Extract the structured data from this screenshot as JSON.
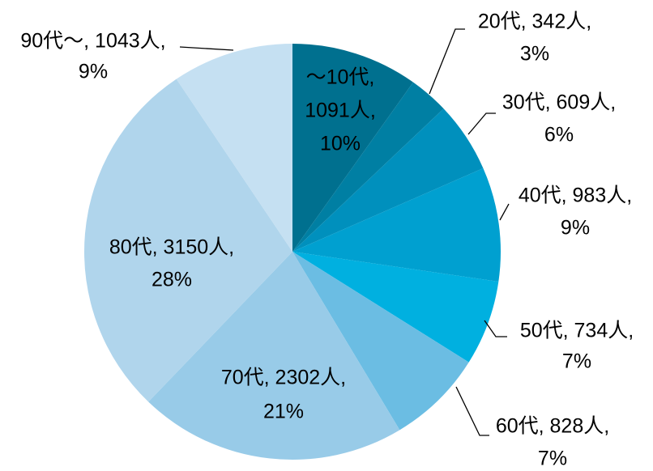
{
  "chart_data": {
    "type": "pie",
    "values": [
      1091,
      342,
      609,
      983,
      734,
      828,
      2302,
      3150,
      1043
    ],
    "value_labels": [
      [
        "〜10代,",
        "1091人,",
        "10%"
      ],
      [
        "20代, 342人,",
        "3%"
      ],
      [
        "30代, 609人,",
        "6%"
      ],
      [
        "40代, 983人,",
        "9%"
      ],
      [
        "50代, 734人,",
        "7%"
      ],
      [
        "60代, 828人,",
        "7%"
      ],
      [
        "70代, 2302人,",
        "21%"
      ],
      [
        "80代, 3150人,",
        "28%"
      ],
      [
        "90代〜, 1043人,",
        "9%"
      ]
    ],
    "colors": [
      "#00708f",
      "#007fa3",
      "#0090bd",
      "#00a0d0",
      "#00b0e0",
      "#6bbde3",
      "#98cbe8",
      "#b0d5ec",
      "#c5e0f2"
    ]
  }
}
